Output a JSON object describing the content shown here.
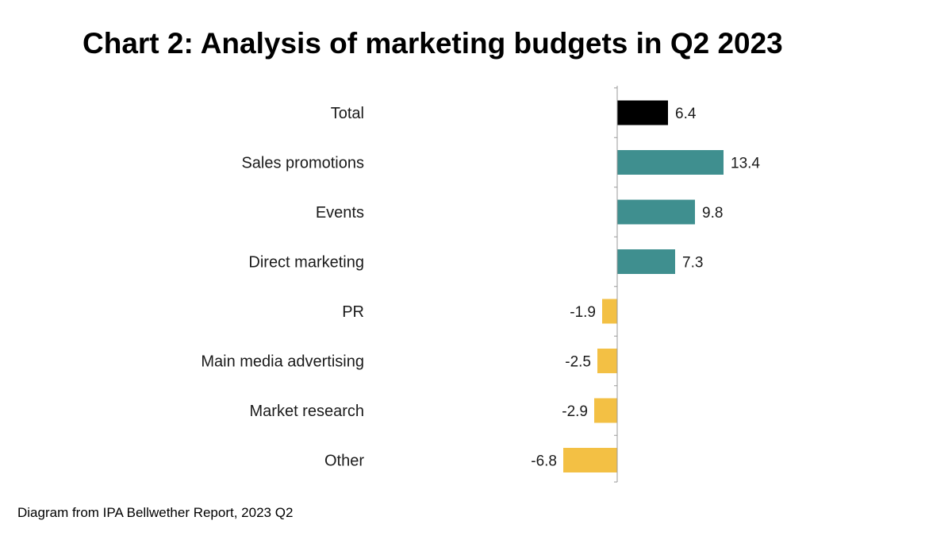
{
  "title": "Chart 2: Analysis of marketing budgets in Q2 2023",
  "source": "Diagram from IPA Bellwether Report, 2023 Q2",
  "chart_data": {
    "type": "bar",
    "orientation": "horizontal",
    "title": "Chart 2: Analysis of marketing budgets in Q2 2023",
    "categories": [
      "Total",
      "Sales promotions",
      "Events",
      "Direct marketing",
      "PR",
      "Main media advertising",
      "Market research",
      "Other"
    ],
    "values": [
      6.4,
      13.4,
      9.8,
      7.3,
      -1.9,
      -2.5,
      -2.9,
      -6.8
    ],
    "value_labels": [
      "6.4",
      "13.4",
      "9.8",
      "7.3",
      "-1.9",
      "-2.5",
      "-2.9",
      "-6.8"
    ],
    "colors": [
      "#000000",
      "#3f8f8f",
      "#3f8f8f",
      "#3f8f8f",
      "#f3c044",
      "#f3c044",
      "#f3c044",
      "#f3c044"
    ],
    "xlim": [
      -7.0,
      14.0
    ],
    "xlabel": "",
    "ylabel": "",
    "grid": false
  }
}
